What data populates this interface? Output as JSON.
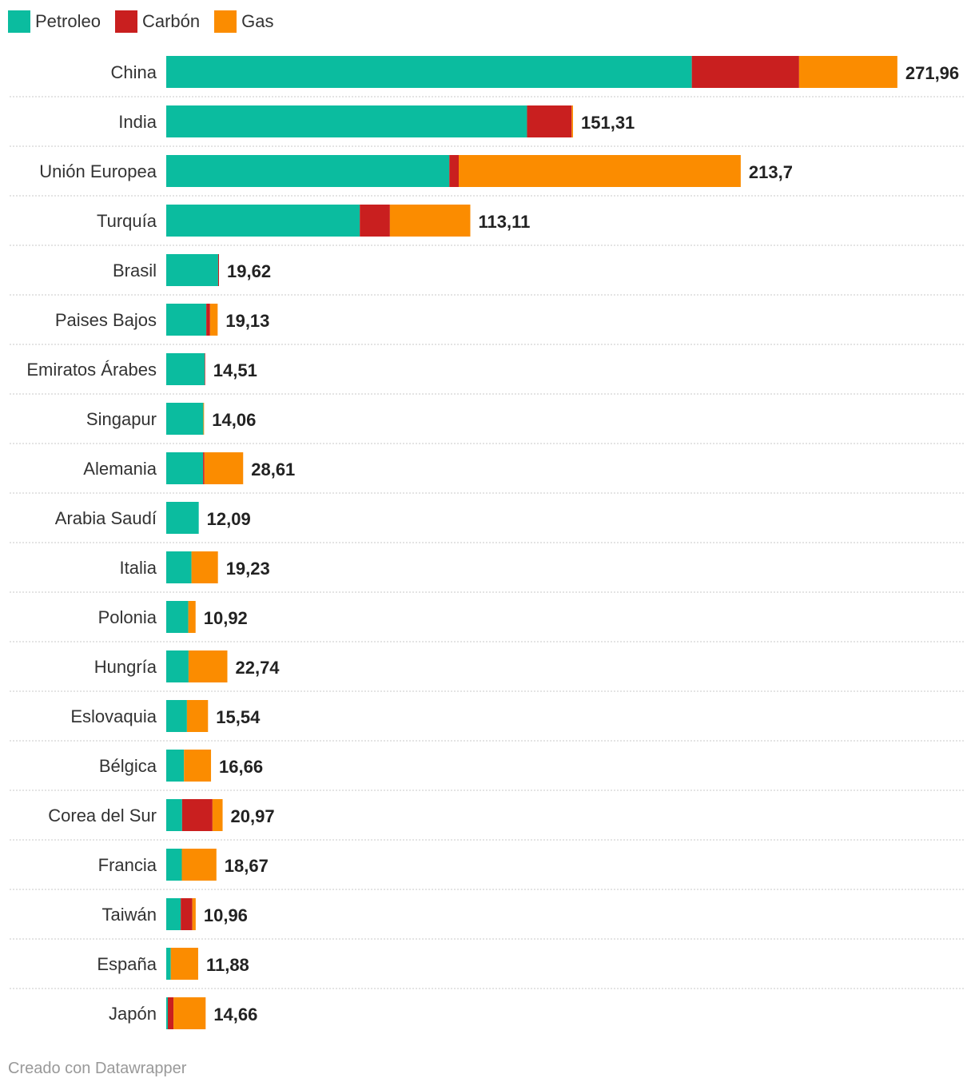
{
  "chart_data": {
    "type": "bar",
    "orientation": "horizontal",
    "stacked": true,
    "categories": [
      "China",
      "India",
      "Unión Europea",
      "Turquía",
      "Brasil",
      "Paises Bajos",
      "Emiratos Árabes",
      "Singapur",
      "Alemania",
      "Arabia Saudí",
      "Italia",
      "Polonia",
      "Hungría",
      "Eslovaquia",
      "Bélgica",
      "Corea del Sur",
      "Francia",
      "Taiwán",
      "España",
      "Japón"
    ],
    "series": [
      {
        "name": "Petroleo",
        "color": "#0bbc9f",
        "values": [
          195.5,
          134.2,
          105.3,
          72.0,
          19.3,
          14.9,
          14.3,
          13.8,
          13.7,
          12.09,
          9.4,
          8.2,
          8.3,
          7.7,
          6.6,
          5.9,
          5.8,
          5.4,
          1.7,
          0.6
        ]
      },
      {
        "name": "Carbón",
        "color": "#c91f1f",
        "values": [
          39.9,
          16.6,
          3.5,
          11.2,
          0.32,
          1.4,
          0.21,
          0.0,
          0.5,
          0.0,
          0.0,
          0.0,
          0.0,
          0.0,
          0.0,
          11.3,
          0.0,
          4.3,
          0.0,
          2.1
        ]
      },
      {
        "name": "Gas",
        "color": "#fb8c00",
        "values": [
          36.56,
          0.51,
          104.9,
          29.91,
          0.0,
          2.83,
          0.0,
          0.26,
          14.41,
          0.0,
          9.83,
          2.72,
          14.44,
          7.84,
          10.06,
          3.77,
          12.87,
          1.26,
          10.18,
          11.96
        ]
      }
    ],
    "totals": [
      "271,96",
      "151,31",
      "213,7",
      "113,11",
      "19,62",
      "19,13",
      "14,51",
      "14,06",
      "28,61",
      "12,09",
      "19,23",
      "10,92",
      "22,74",
      "15,54",
      "16,66",
      "20,97",
      "18,67",
      "10,96",
      "11,88",
      "14,66"
    ],
    "xlim": [
      0,
      300
    ],
    "grid": false,
    "legend": "top-left"
  },
  "footer": "Creado con Datawrapper"
}
